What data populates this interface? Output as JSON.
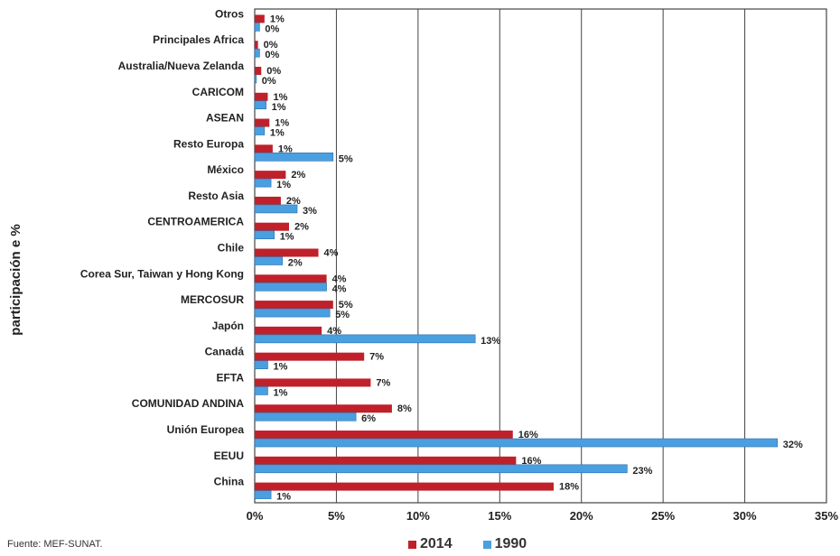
{
  "chart_data": {
    "type": "bar",
    "orientation": "horizontal",
    "ylabel": "participación e %",
    "xlim": [
      0,
      35
    ],
    "xticks": [
      "0%",
      "5%",
      "10%",
      "15%",
      "20%",
      "25%",
      "30%",
      "35%"
    ],
    "grid": true,
    "legend_position": "bottom",
    "categories": [
      "Otros",
      "Principales Africa",
      "Australia/Nueva Zelanda",
      "CARICOM",
      "ASEAN",
      "Resto Europa",
      "México",
      "Resto Asia",
      "CENTROAMERICA",
      "Chile",
      "Corea Sur, Taiwan y Hong Kong",
      "MERCOSUR",
      "Japón",
      "Canadá",
      "EFTA",
      "COMUNIDAD ANDINA",
      "Unión Europea",
      "EEUU",
      "China"
    ],
    "series": [
      {
        "name": "2014",
        "color": "#c0202a",
        "values": [
          0.6,
          0.2,
          0.4,
          0.8,
          0.9,
          1.1,
          1.9,
          1.6,
          2.1,
          3.9,
          4.4,
          4.8,
          4.1,
          6.7,
          7.1,
          8.4,
          15.8,
          16.0,
          18.3
        ],
        "labels": [
          "1%",
          "0%",
          "0%",
          "1%",
          "1%",
          "1%",
          "2%",
          "2%",
          "2%",
          "4%",
          "4%",
          "5%",
          "4%",
          "7%",
          "7%",
          "8%",
          "16%",
          "16%",
          "18%"
        ]
      },
      {
        "name": "1990",
        "color": "#4a9fe0",
        "values": [
          0.3,
          0.3,
          0.1,
          0.7,
          0.6,
          4.8,
          1.0,
          2.6,
          1.2,
          1.7,
          4.4,
          4.6,
          13.5,
          0.8,
          0.8,
          6.2,
          32.0,
          22.8,
          1.0
        ],
        "labels": [
          "0%",
          "0%",
          "0%",
          "1%",
          "1%",
          "5%",
          "1%",
          "3%",
          "1%",
          "2%",
          "4%",
          "5%",
          "13%",
          "1%",
          "1%",
          "6%",
          "32%",
          "23%",
          "1%"
        ]
      }
    ]
  },
  "footer": {
    "source": "Fuente: MEF-SUNAT."
  }
}
